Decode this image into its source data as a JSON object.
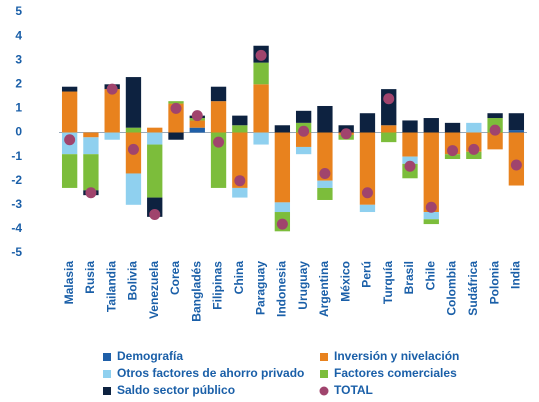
{
  "chart_data": {
    "type": "bar",
    "stacked": true,
    "categories": [
      "Malasia",
      "Rusia",
      "Tailandia",
      "Bolivia",
      "Venezuela",
      "Corea",
      "Bangladés",
      "Filipinas",
      "China",
      "Paraguay",
      "Indonesia",
      "Uruguay",
      "Argentina",
      "México",
      "Perú",
      "Turquía",
      "Brasil",
      "Chile",
      "Colombia",
      "Sudáfrica",
      "Polonia",
      "India"
    ],
    "series": [
      {
        "name": "Demografía",
        "color": "#1f5fa8",
        "values": [
          0,
          0,
          0,
          0,
          0,
          0,
          0.2,
          0,
          0,
          0,
          0,
          0,
          0,
          0,
          0,
          0,
          0,
          0,
          0,
          0,
          0,
          0.1
        ]
      },
      {
        "name": "Inversión y nivelación",
        "color": "#e8821e",
        "values": [
          1.7,
          -0.2,
          1.8,
          -1.7,
          0.2,
          1.2,
          0.3,
          1.3,
          -2.3,
          2,
          -2.9,
          -0.6,
          -2,
          -0.1,
          -3,
          0.3,
          -1,
          -3.3,
          -0.9,
          -0.8,
          -0.7,
          -2.2
        ]
      },
      {
        "name": "Otros factores de ahorro privado",
        "color": "#8fd0ef",
        "values": [
          -0.9,
          -0.7,
          -0.3,
          -1.3,
          -0.5,
          0,
          0,
          0,
          -0.4,
          -0.5,
          -0.4,
          -0.3,
          -0.3,
          0,
          -0.3,
          0,
          -0.3,
          -0.3,
          0,
          0.4,
          0,
          0
        ]
      },
      {
        "name": "Factores comerciales",
        "color": "#7cbd3b",
        "values": [
          -1.4,
          -1.5,
          0,
          0.2,
          -2.2,
          0.1,
          0.1,
          -2.3,
          0.3,
          0.9,
          -0.8,
          0.4,
          -0.5,
          -0.2,
          0,
          -0.4,
          -0.6,
          -0.2,
          -0.2,
          -0.3,
          0.6,
          0
        ]
      },
      {
        "name": "Saldo sector público",
        "color": "#0d2240",
        "values": [
          0.2,
          -0.2,
          0.2,
          2.1,
          -0.8,
          -0.3,
          0.1,
          0.6,
          0.4,
          0.7,
          0.3,
          0.5,
          1.1,
          0.3,
          0.8,
          1.5,
          0.5,
          0.6,
          0.4,
          0,
          0.2,
          0.7
        ]
      },
      {
        "name": "TOTAL",
        "color": "#a0446d",
        "style": "dot",
        "values": [
          -0.3,
          -2.5,
          1.8,
          -0.7,
          -3.4,
          1,
          0.7,
          -0.4,
          -2,
          3.2,
          -3.8,
          0.05,
          -1.7,
          -0.05,
          -2.5,
          1.4,
          -1.4,
          -3.1,
          -0.75,
          -0.7,
          0.1,
          -1.35
        ]
      }
    ],
    "ylim": [
      -5,
      5
    ],
    "yticks": [
      -5,
      -4,
      -3,
      -2,
      -1,
      0,
      1,
      2,
      3,
      4,
      5
    ],
    "grid": false
  }
}
